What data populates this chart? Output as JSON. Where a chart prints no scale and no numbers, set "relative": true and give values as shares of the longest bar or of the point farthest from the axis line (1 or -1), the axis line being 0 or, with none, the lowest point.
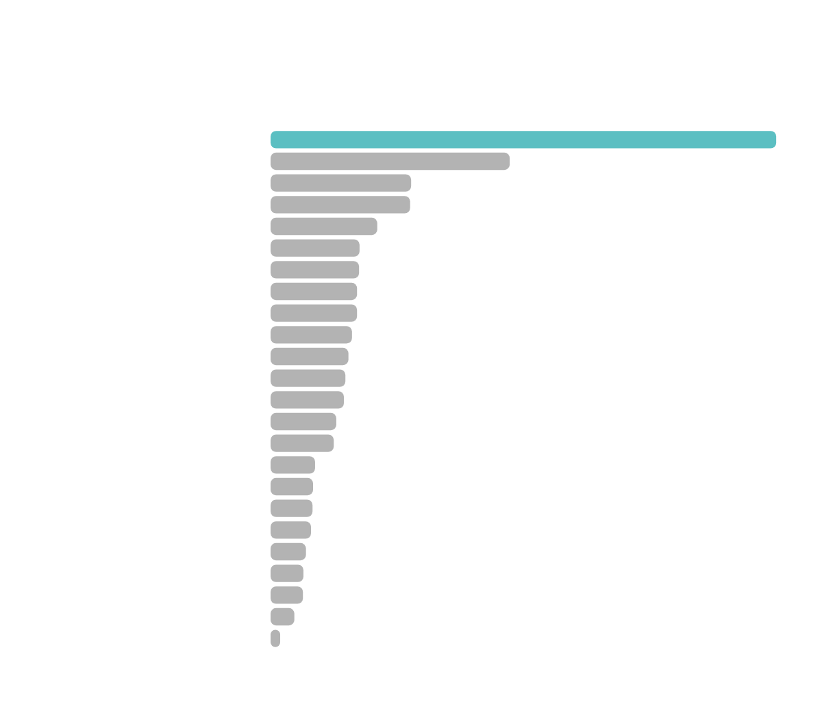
{
  "chart_data": {
    "type": "bar",
    "orientation": "horizontal",
    "relative": true,
    "categories": [
      null,
      null,
      null,
      null,
      null,
      null,
      null,
      null,
      null,
      null,
      null,
      null,
      null,
      null,
      null,
      null,
      null,
      null,
      null,
      null,
      null,
      null,
      null,
      null
    ],
    "values": [
      1,
      0.473,
      0.278,
      0.276,
      0.211,
      0.176,
      0.175,
      0.171,
      0.171,
      0.161,
      0.154,
      0.148,
      0.145,
      0.13,
      0.125,
      0.088,
      0.084,
      0.083,
      0.08,
      0.07,
      0.065,
      0.064,
      0.047,
      0.019
    ],
    "colors": [
      "#5bbfc2",
      "#b3b3b3",
      "#b3b3b3",
      "#b3b3b3",
      "#b3b3b3",
      "#b3b3b3",
      "#b3b3b3",
      "#b3b3b3",
      "#b3b3b3",
      "#b3b3b3",
      "#b3b3b3",
      "#b3b3b3",
      "#b3b3b3",
      "#b3b3b3",
      "#b3b3b3",
      "#b3b3b3",
      "#b3b3b3",
      "#b3b3b3",
      "#b3b3b3",
      "#b3b3b3",
      "#b3b3b3",
      "#b3b3b3",
      "#b3b3b3",
      "#b3b3b3"
    ]
  }
}
